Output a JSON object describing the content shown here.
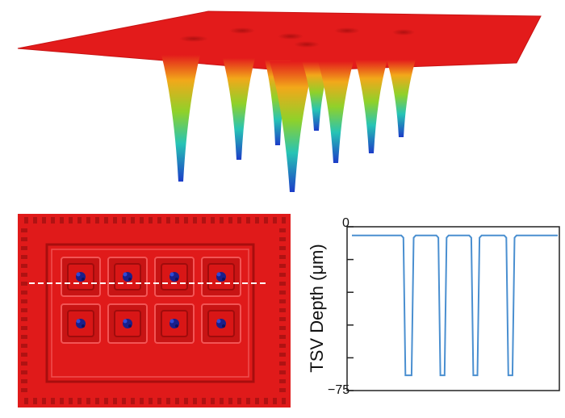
{
  "colors": {
    "surface": "#e31b1b",
    "profile_line": "#4a8fd0",
    "axis": "#222222",
    "marker_line": "#ffffff",
    "hole": "#1a1f8a"
  },
  "chart_data": [
    {
      "type": "surface",
      "description_of_features": "3D height map of a red flat surface with 8 conical depressions colored red-yellow-green-cyan-blue by depth",
      "wells": [
        {
          "row": 1,
          "col": 1
        },
        {
          "row": 1,
          "col": 2
        },
        {
          "row": 1,
          "col": 3
        },
        {
          "row": 1,
          "col": 4
        },
        {
          "row": 2,
          "col": 1
        },
        {
          "row": 2,
          "col": 2
        },
        {
          "row": 2,
          "col": 3
        },
        {
          "row": 2,
          "col": 4
        }
      ]
    },
    {
      "type": "heatmap",
      "grid_rows": 2,
      "grid_cols": 4,
      "has_profile_cut_line": true,
      "cut_line_row": 1
    },
    {
      "type": "line",
      "title": "",
      "xlabel": "",
      "ylabel": "TSV Depth (μm)",
      "ylim": [
        -75,
        0
      ],
      "y_tick_labels": [
        "0",
        "−75"
      ],
      "x": [
        0,
        0.24,
        0.25,
        0.26,
        0.27,
        0.29,
        0.3,
        0.31,
        0.4,
        0.41,
        0.42,
        0.43,
        0.45,
        0.46,
        0.47,
        0.56,
        0.57,
        0.58,
        0.59,
        0.61,
        0.62,
        0.63,
        0.73,
        0.74,
        0.75,
        0.76,
        0.78,
        0.79,
        0.8,
        1.0
      ],
      "y": [
        -4,
        -4,
        -5,
        -68,
        -68,
        -68,
        -5,
        -4,
        -4,
        -4,
        -5,
        -68,
        -68,
        -5,
        -4,
        -4,
        -4,
        -5,
        -68,
        -68,
        -5,
        -4,
        -4,
        -4,
        -5,
        -68,
        -68,
        -5,
        -4,
        -4
      ]
    }
  ]
}
